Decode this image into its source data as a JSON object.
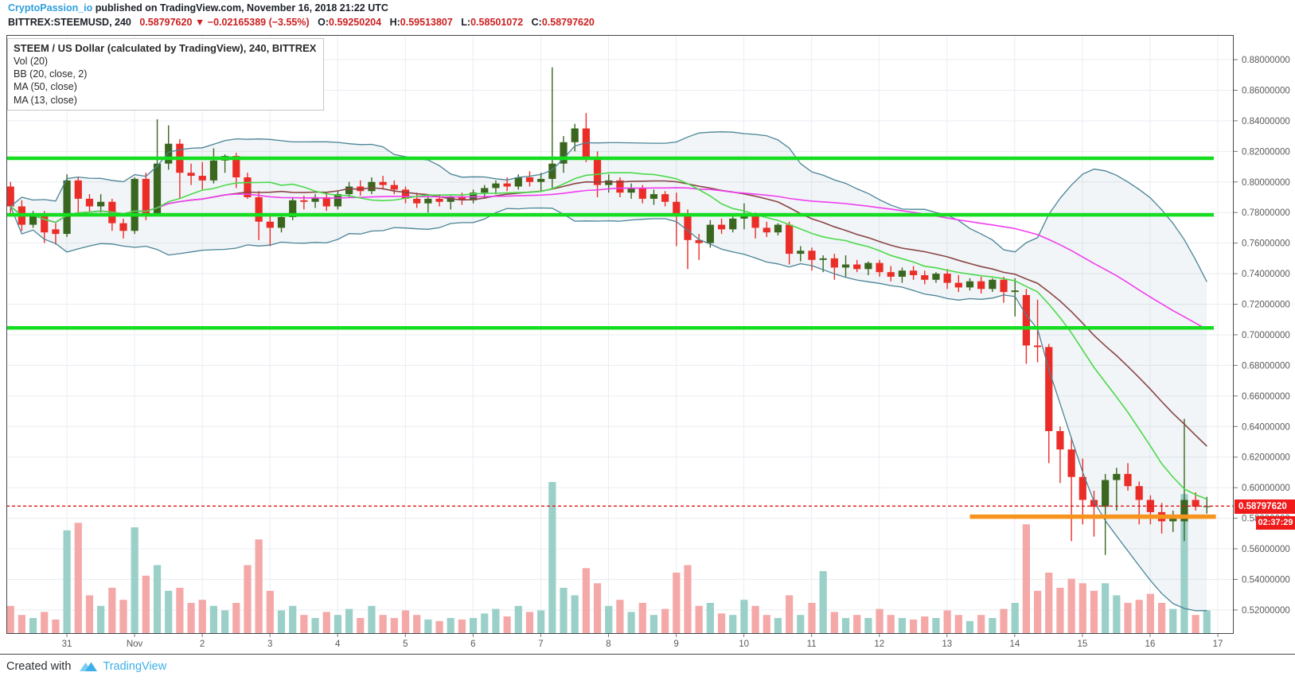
{
  "header": {
    "line1": {
      "author": "CryptoPassion_io",
      "rest": " published on TradingView.com, November 16, 2018 21:22 UTC"
    },
    "line2": {
      "symbol": "BITTREX:STEEMUSD, 240",
      "last_price": "0.58797620",
      "arrow": "▼",
      "change": "−0.02165389 (−3.55%)",
      "o_label": "O:",
      "o_value": "0.59250204",
      "h_label": "H:",
      "h_value": "0.59513807",
      "l_label": "L:",
      "l_value": "0.58501072",
      "c_label": "C:",
      "c_value": "0.58797620"
    }
  },
  "legend": {
    "title": "STEEM / US Dollar (calculated by TradingView), 240, BITTREX",
    "items": [
      "Vol (20)",
      "BB (20, close, 2)",
      "MA (50, close)",
      "MA (13, close)"
    ]
  },
  "footer": {
    "created_with": "Created with",
    "brand": "TradingView"
  },
  "price_axis": {
    "ticks": [
      "0.88000000",
      "0.86000000",
      "0.84000000",
      "0.82000000",
      "0.80000000",
      "0.78000000",
      "0.76000000",
      "0.74000000",
      "0.72000000",
      "0.70000000",
      "0.68000000",
      "0.66000000",
      "0.64000000",
      "0.62000000",
      "0.60000000",
      "0.58000000",
      "0.56000000",
      "0.54000000",
      "0.52000000"
    ],
    "current_price_label": "0.58797620",
    "countdown": "02:37:29"
  },
  "time_axis": {
    "labels": [
      "31",
      "Nov",
      "2",
      "3",
      "4",
      "5",
      "6",
      "7",
      "8",
      "9",
      "10",
      "11",
      "12",
      "13",
      "14",
      "15",
      "16",
      "17"
    ]
  },
  "chart_data": {
    "type": "candlestick",
    "title": "STEEM / US Dollar (calculated by TradingView), 240, BITTREX",
    "interval_minutes": 240,
    "x_span": "Oct 30 2018 – Nov 16 2018 (4h candles)",
    "ylim": [
      0.505,
      0.895
    ],
    "grid": true,
    "indicators": {
      "bollinger": {
        "length": 20,
        "source": "close",
        "stdev": 2
      },
      "ma_slow": {
        "length": 50,
        "source": "close"
      },
      "ma_fast": {
        "length": 13,
        "source": "close"
      },
      "volume_ma": 20
    },
    "overlays": {
      "support_lines": [
        {
          "price": 0.8155
        },
        {
          "price": 0.7785
        },
        {
          "price": 0.7045
        }
      ],
      "orange_line": {
        "price": 0.581,
        "x_from_candle": 85,
        "x_to_candle": 106.8
      },
      "current_price_line": {
        "price": 0.5879762
      }
    },
    "candles": [
      [
        0.797,
        0.8,
        0.778,
        0.784,
        0.18
      ],
      [
        0.784,
        0.788,
        0.768,
        0.772,
        0.12
      ],
      [
        0.772,
        0.781,
        0.77,
        0.779,
        0.1
      ],
      [
        0.779,
        0.781,
        0.76,
        0.767,
        0.14
      ],
      [
        0.769,
        0.773,
        0.759,
        0.766,
        0.09
      ],
      [
        0.766,
        0.805,
        0.764,
        0.801,
        0.68
      ],
      [
        0.801,
        0.803,
        0.779,
        0.789,
        0.73
      ],
      [
        0.789,
        0.792,
        0.78,
        0.784,
        0.25
      ],
      [
        0.784,
        0.792,
        0.78,
        0.787,
        0.18
      ],
      [
        0.787,
        0.789,
        0.768,
        0.773,
        0.3
      ],
      [
        0.773,
        0.776,
        0.763,
        0.768,
        0.22
      ],
      [
        0.768,
        0.803,
        0.766,
        0.802,
        0.7
      ],
      [
        0.802,
        0.806,
        0.775,
        0.779,
        0.38
      ],
      [
        0.779,
        0.841,
        0.778,
        0.812,
        0.45
      ],
      [
        0.812,
        0.837,
        0.808,
        0.825,
        0.28
      ],
      [
        0.825,
        0.828,
        0.789,
        0.806,
        0.3
      ],
      [
        0.806,
        0.812,
        0.798,
        0.804,
        0.2
      ],
      [
        0.804,
        0.813,
        0.795,
        0.801,
        0.22
      ],
      [
        0.801,
        0.822,
        0.799,
        0.814,
        0.18
      ],
      [
        0.814,
        0.818,
        0.806,
        0.817,
        0.15
      ],
      [
        0.817,
        0.819,
        0.796,
        0.803,
        0.2
      ],
      [
        0.803,
        0.806,
        0.789,
        0.79,
        0.45
      ],
      [
        0.79,
        0.794,
        0.762,
        0.774,
        0.62
      ],
      [
        0.774,
        0.778,
        0.758,
        0.77,
        0.28
      ],
      [
        0.77,
        0.779,
        0.767,
        0.777,
        0.15
      ],
      [
        0.777,
        0.79,
        0.775,
        0.788,
        0.18
      ],
      [
        0.788,
        0.791,
        0.782,
        0.787,
        0.12
      ],
      [
        0.787,
        0.792,
        0.783,
        0.79,
        0.1
      ],
      [
        0.79,
        0.793,
        0.781,
        0.784,
        0.14
      ],
      [
        0.784,
        0.794,
        0.782,
        0.792,
        0.12
      ],
      [
        0.792,
        0.8,
        0.79,
        0.797,
        0.16
      ],
      [
        0.797,
        0.801,
        0.791,
        0.794,
        0.1
      ],
      [
        0.794,
        0.803,
        0.792,
        0.8,
        0.18
      ],
      [
        0.8,
        0.804,
        0.795,
        0.798,
        0.12
      ],
      [
        0.798,
        0.801,
        0.792,
        0.795,
        0.1
      ],
      [
        0.795,
        0.797,
        0.786,
        0.789,
        0.15
      ],
      [
        0.789,
        0.793,
        0.783,
        0.786,
        0.12
      ],
      [
        0.786,
        0.791,
        0.78,
        0.789,
        0.09
      ],
      [
        0.789,
        0.792,
        0.784,
        0.787,
        0.08
      ],
      [
        0.787,
        0.791,
        0.782,
        0.79,
        0.1
      ],
      [
        0.79,
        0.793,
        0.785,
        0.788,
        0.09
      ],
      [
        0.788,
        0.795,
        0.786,
        0.793,
        0.1
      ],
      [
        0.793,
        0.798,
        0.789,
        0.796,
        0.13
      ],
      [
        0.796,
        0.801,
        0.792,
        0.799,
        0.16
      ],
      [
        0.799,
        0.803,
        0.794,
        0.797,
        0.11
      ],
      [
        0.797,
        0.805,
        0.795,
        0.803,
        0.18
      ],
      [
        0.803,
        0.807,
        0.797,
        0.8,
        0.14
      ],
      [
        0.8,
        0.806,
        0.794,
        0.802,
        0.15
      ],
      [
        0.802,
        0.875,
        0.796,
        0.812,
        1.0
      ],
      [
        0.812,
        0.83,
        0.806,
        0.826,
        0.3
      ],
      [
        0.826,
        0.838,
        0.82,
        0.835,
        0.25
      ],
      [
        0.835,
        0.845,
        0.813,
        0.816,
        0.43
      ],
      [
        0.816,
        0.82,
        0.79,
        0.798,
        0.33
      ],
      [
        0.798,
        0.805,
        0.793,
        0.801,
        0.18
      ],
      [
        0.801,
        0.803,
        0.79,
        0.793,
        0.22
      ],
      [
        0.793,
        0.799,
        0.789,
        0.796,
        0.14
      ],
      [
        0.796,
        0.798,
        0.786,
        0.789,
        0.2
      ],
      [
        0.789,
        0.795,
        0.785,
        0.792,
        0.12
      ],
      [
        0.792,
        0.794,
        0.784,
        0.787,
        0.16
      ],
      [
        0.787,
        0.793,
        0.758,
        0.779,
        0.4
      ],
      [
        0.779,
        0.782,
        0.743,
        0.762,
        0.45
      ],
      [
        0.762,
        0.766,
        0.749,
        0.76,
        0.18
      ],
      [
        0.76,
        0.775,
        0.757,
        0.772,
        0.2
      ],
      [
        0.772,
        0.776,
        0.766,
        0.769,
        0.13
      ],
      [
        0.769,
        0.778,
        0.767,
        0.776,
        0.12
      ],
      [
        0.776,
        0.786,
        0.769,
        0.778,
        0.22
      ],
      [
        0.778,
        0.78,
        0.763,
        0.77,
        0.18
      ],
      [
        0.77,
        0.774,
        0.764,
        0.767,
        0.12
      ],
      [
        0.767,
        0.773,
        0.765,
        0.772,
        0.1
      ],
      [
        0.772,
        0.774,
        0.746,
        0.753,
        0.25
      ],
      [
        0.753,
        0.758,
        0.748,
        0.755,
        0.12
      ],
      [
        0.755,
        0.757,
        0.742,
        0.749,
        0.2
      ],
      [
        0.749,
        0.752,
        0.741,
        0.75,
        0.41
      ],
      [
        0.75,
        0.753,
        0.736,
        0.744,
        0.14
      ],
      [
        0.744,
        0.752,
        0.738,
        0.746,
        0.1
      ],
      [
        0.746,
        0.749,
        0.741,
        0.743,
        0.12
      ],
      [
        0.743,
        0.748,
        0.739,
        0.747,
        0.1
      ],
      [
        0.747,
        0.749,
        0.738,
        0.741,
        0.16
      ],
      [
        0.741,
        0.745,
        0.735,
        0.738,
        0.12
      ],
      [
        0.738,
        0.744,
        0.734,
        0.742,
        0.1
      ],
      [
        0.742,
        0.745,
        0.736,
        0.739,
        0.09
      ],
      [
        0.739,
        0.742,
        0.733,
        0.736,
        0.11
      ],
      [
        0.736,
        0.741,
        0.734,
        0.74,
        0.1
      ],
      [
        0.74,
        0.743,
        0.73,
        0.734,
        0.15
      ],
      [
        0.734,
        0.739,
        0.728,
        0.731,
        0.12
      ],
      [
        0.731,
        0.737,
        0.729,
        0.735,
        0.08
      ],
      [
        0.735,
        0.738,
        0.727,
        0.73,
        0.12
      ],
      [
        0.73,
        0.737,
        0.728,
        0.736,
        0.1
      ],
      [
        0.736,
        0.738,
        0.721,
        0.728,
        0.16
      ],
      [
        0.728,
        0.737,
        0.712,
        0.729,
        0.2
      ],
      [
        0.726,
        0.73,
        0.681,
        0.693,
        0.72
      ],
      [
        0.693,
        0.723,
        0.682,
        0.692,
        0.28
      ],
      [
        0.692,
        0.694,
        0.616,
        0.637,
        0.4
      ],
      [
        0.637,
        0.64,
        0.603,
        0.625,
        0.3
      ],
      [
        0.625,
        0.633,
        0.565,
        0.607,
        0.36
      ],
      [
        0.607,
        0.619,
        0.576,
        0.592,
        0.33
      ],
      [
        0.592,
        0.598,
        0.568,
        0.5875,
        0.28
      ],
      [
        0.5875,
        0.609,
        0.556,
        0.605,
        0.33
      ],
      [
        0.605,
        0.613,
        0.585,
        0.609,
        0.25
      ],
      [
        0.609,
        0.616,
        0.598,
        0.601,
        0.2
      ],
      [
        0.601,
        0.604,
        0.576,
        0.592,
        0.22
      ],
      [
        0.592,
        0.595,
        0.576,
        0.584,
        0.26
      ],
      [
        0.584,
        0.59,
        0.57,
        0.578,
        0.2
      ],
      [
        0.578,
        0.585,
        0.571,
        0.58,
        0.16
      ],
      [
        0.578,
        0.645,
        0.565,
        0.592,
        0.92
      ],
      [
        0.592,
        0.597,
        0.585,
        0.5875,
        0.12
      ],
      [
        0.5875,
        0.594,
        0.583,
        0.588,
        0.15
      ]
    ]
  },
  "colors": {
    "up_candle": "#3a661f",
    "down_candle": "#eb2d28",
    "vol_up": "#9bd0c9",
    "vol_down": "#f5a8a8",
    "bb_band": "#4a8396",
    "bb_fill": "rgba(74,131,150,0.08)",
    "bb_basis": "#8a4545",
    "ma50": "#f03ef0",
    "ma13": "#4cd94c",
    "support_line": "#15dd20",
    "orange_line": "#f7941e",
    "price_line": "#e01515",
    "grid": "#e9edf2",
    "axis_text": "#5a5a5a",
    "frame": "#43494e",
    "label_bg": "#ef1a1a",
    "link_blue": "#2f9fdc",
    "brand_blue": "#3cb0e8"
  }
}
